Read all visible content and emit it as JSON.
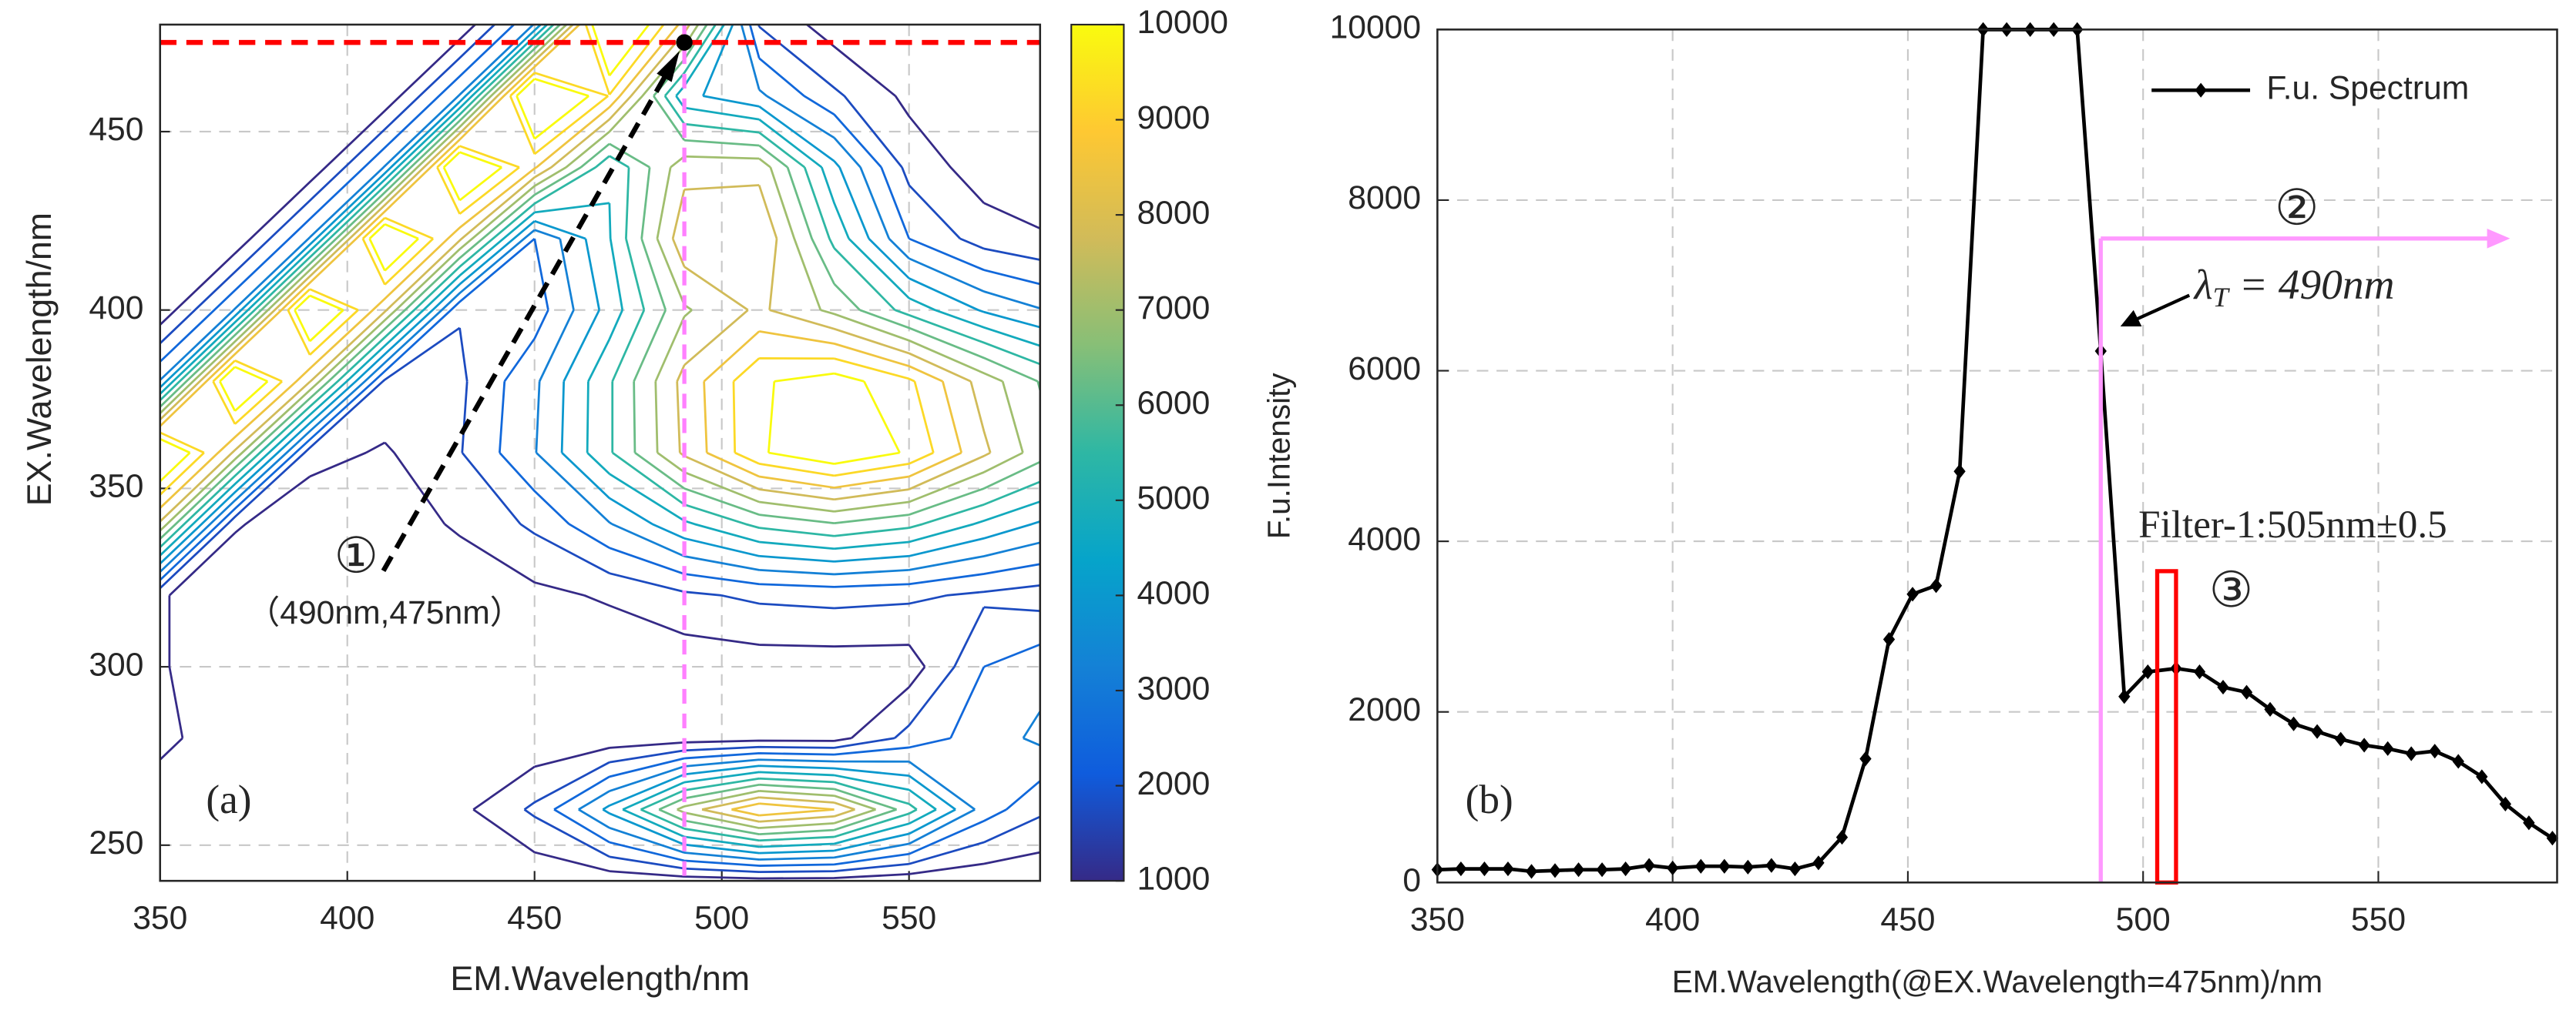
{
  "chart_data": [
    {
      "type": "contour",
      "xlabel": "EM.Wavelength/nm",
      "ylabel": "EX.Wavelength/nm",
      "x": [
        350,
        370,
        390,
        410,
        430,
        450,
        470,
        490,
        510,
        530,
        550,
        570,
        585
      ],
      "y": [
        240,
        260,
        280,
        300,
        320,
        340,
        360,
        380,
        400,
        420,
        440,
        460,
        480
      ],
      "z": [
        [
          300,
          300,
          300,
          300,
          300,
          400,
          500,
          600,
          700,
          700,
          500,
          400,
          400
        ],
        [
          300,
          300,
          300,
          400,
          800,
          1900,
          4200,
          7300,
          9200,
          8500,
          5800,
          2900,
          1900
        ],
        [
          1300,
          300,
          300,
          300,
          300,
          400,
          500,
          600,
          700,
          700,
          2000,
          2900,
          3400
        ],
        [
          1100,
          300,
          300,
          300,
          300,
          400,
          400,
          500,
          600,
          600,
          600,
          2500,
          3000
        ],
        [
          1100,
          300,
          300,
          400,
          500,
          800,
          1100,
          1600,
          1900,
          2000,
          1900,
          1600,
          1400
        ],
        [
          7600,
          1100,
          400,
          600,
          1100,
          1900,
          3200,
          4600,
          5700,
          6200,
          5700,
          4600,
          3900
        ],
        [
          11600,
          7600,
          1300,
          900,
          1700,
          3200,
          5400,
          7900,
          9900,
          10700,
          9900,
          7900,
          6600
        ],
        [
          3300,
          11700,
          7800,
          1600,
          1600,
          3100,
          5400,
          8000,
          9900,
          10400,
          9400,
          7400,
          6200
        ],
        [
          400,
          3300,
          11700,
          7900,
          1800,
          2100,
          4300,
          6900,
          7900,
          6800,
          5200,
          3900,
          3300
        ],
        [
          300,
          400,
          3300,
          11700,
          7900,
          2500,
          4700,
          8300,
          8500,
          5300,
          2500,
          1400,
          1100
        ],
        [
          300,
          300,
          400,
          3300,
          11800,
          8600,
          4800,
          7500,
          7500,
          4200,
          1500,
          600,
          400
        ],
        [
          300,
          300,
          300,
          400,
          3300,
          12100,
          9200,
          4200,
          3400,
          1900,
          800,
          400,
          300
        ],
        [
          300,
          300,
          300,
          300,
          400,
          3300,
          12000,
          8200,
          1700,
          600,
          300,
          300,
          300
        ]
      ],
      "levels": [
        1000,
        1750,
        2500,
        3250,
        4000,
        4750,
        5500,
        6250,
        7000,
        7750,
        8500,
        9250,
        10000
      ],
      "xlim": [
        350,
        585
      ],
      "ylim": [
        240,
        480
      ],
      "xticks": [
        350,
        400,
        450,
        500,
        550
      ],
      "yticks": [
        250,
        300,
        350,
        400,
        450
      ],
      "grid": true,
      "colorbar": {
        "lim": [
          1000,
          10000
        ],
        "ticks": [
          1000,
          2000,
          3000,
          4000,
          5000,
          6000,
          7000,
          8000,
          9000,
          10000
        ],
        "colormap": [
          "#352a87",
          "#0f5cdd",
          "#1481d6",
          "#06a4ca",
          "#2eb7a4",
          "#87bf77",
          "#d1bb59",
          "#fec832",
          "#f9fb0e"
        ]
      },
      "hline": 475,
      "hline_color": "#ff0000",
      "vline": 490,
      "vline_color": "#ff80ff",
      "point": {
        "x": 490,
        "y": 475
      },
      "annotations": {
        "circle": "①",
        "coords": "（490nm,475nm）"
      },
      "panel_label": "(a)"
    },
    {
      "type": "line",
      "xlabel": "EM.Wavelength(@EX.Wavelength=475nm)/nm",
      "ylabel": "F.u.Intensity",
      "x": [
        350,
        355,
        360,
        365,
        370,
        375,
        380,
        385,
        390,
        395,
        400,
        406,
        411,
        416,
        421,
        426,
        431,
        436,
        441,
        446,
        451,
        456,
        461,
        466,
        471,
        476,
        481,
        486,
        491,
        496,
        501,
        507,
        512,
        517,
        522,
        527,
        532,
        537,
        542,
        547,
        552,
        557,
        562,
        567,
        572,
        577,
        582,
        587
      ],
      "series": [
        {
          "name": "F.u. Spectrum",
          "color": "#000000",
          "values": [
            150,
            160,
            160,
            160,
            130,
            140,
            150,
            150,
            160,
            200,
            170,
            190,
            190,
            180,
            200,
            160,
            230,
            530,
            1450,
            2850,
            3380,
            3480,
            4820,
            10000,
            10000,
            10000,
            10000,
            10000,
            6230,
            2180,
            2470,
            2510,
            2470,
            2290,
            2230,
            2030,
            1860,
            1770,
            1680,
            1610,
            1570,
            1510,
            1540,
            1420,
            1240,
            920,
            700,
            520
          ]
        }
      ],
      "xlim": [
        350,
        588
      ],
      "ylim": [
        0,
        10000
      ],
      "xticks": [
        350,
        400,
        450,
        500,
        550
      ],
      "yticks": [
        0,
        2000,
        4000,
        6000,
        8000,
        10000
      ],
      "grid": true,
      "legend": "upper right",
      "threshold": {
        "x": 491,
        "arrow_y": 7550,
        "arrow_x_end": 578,
        "color": "#ff99ff"
      },
      "filter_box": {
        "x": [
          503,
          507
        ],
        "y": [
          0,
          3650
        ],
        "color": "#ff0000"
      },
      "annotations": {
        "circle2": "②",
        "lambda_symbol": "λ",
        "lambda_sub": "T",
        "lambda_text": " = 490nm",
        "filter_label": "Filter-1:505nm±0.5",
        "circle3": "③"
      },
      "panel_label": "(b)"
    }
  ]
}
